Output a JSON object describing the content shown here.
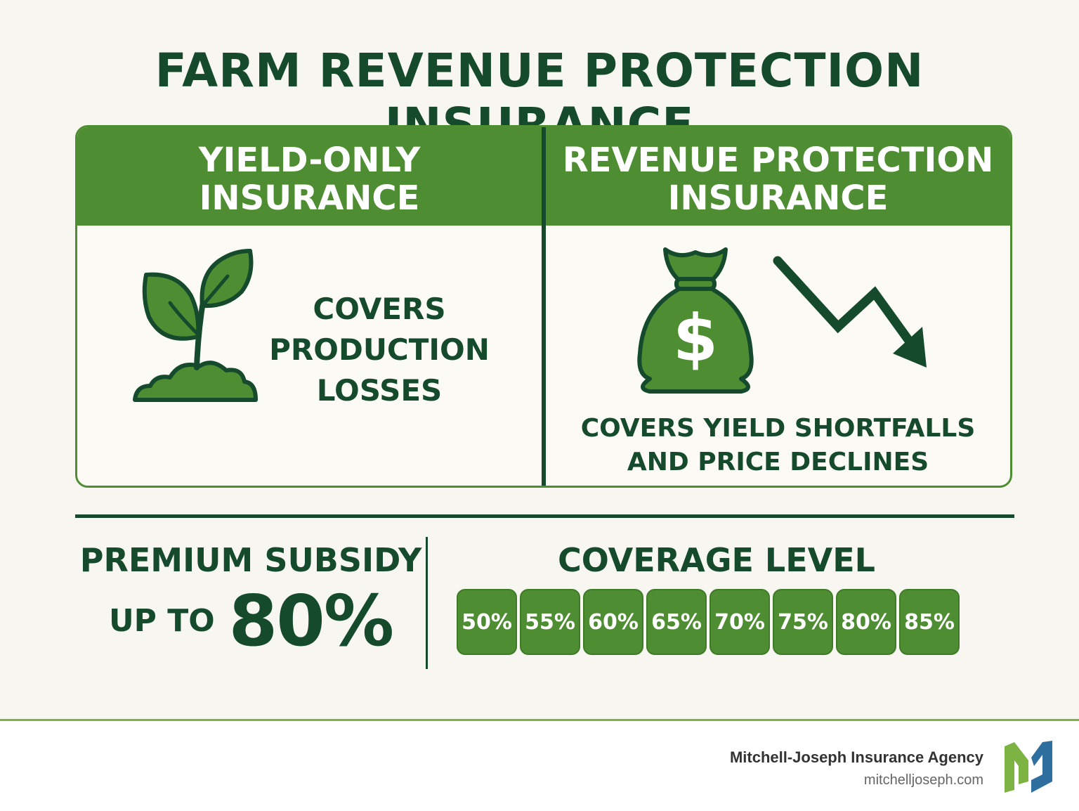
{
  "title": "FARM REVENUE PROTECTION INSURANCE",
  "columns": [
    {
      "title_line1": "YIELD-ONLY",
      "title_line2": "INSURANCE",
      "icon": "sprout-icon",
      "desc_lines": [
        "COVERS",
        "PRODUCTION",
        "LOSSES"
      ]
    },
    {
      "title_line1": "REVENUE PROTECTION",
      "title_line2": "INSURANCE",
      "icon": "money-bag-icon",
      "icon2": "downward-trend-arrow-icon",
      "bag_symbol": "$",
      "desc_lines": [
        "COVERS YIELD SHORTFALLS",
        "AND PRICE DECLINES"
      ]
    }
  ],
  "subsidy": {
    "label": "PREMIUM SUBSIDY",
    "prefix": "UP TO",
    "value": "80%"
  },
  "coverage": {
    "label": "COVERAGE LEVEL",
    "levels": [
      "50%",
      "55%",
      "60%",
      "65%",
      "70%",
      "75%",
      "80%",
      "85%"
    ]
  },
  "footer": {
    "agency": "Mitchell-Joseph Insurance Agency",
    "url": "mitchelljoseph.com",
    "logo_icon": "mj-logo-icon"
  },
  "colors": {
    "dark_green": "#164a2c",
    "green": "#4f8d33",
    "light_green": "#7cb342",
    "blue": "#2f6f9f"
  }
}
